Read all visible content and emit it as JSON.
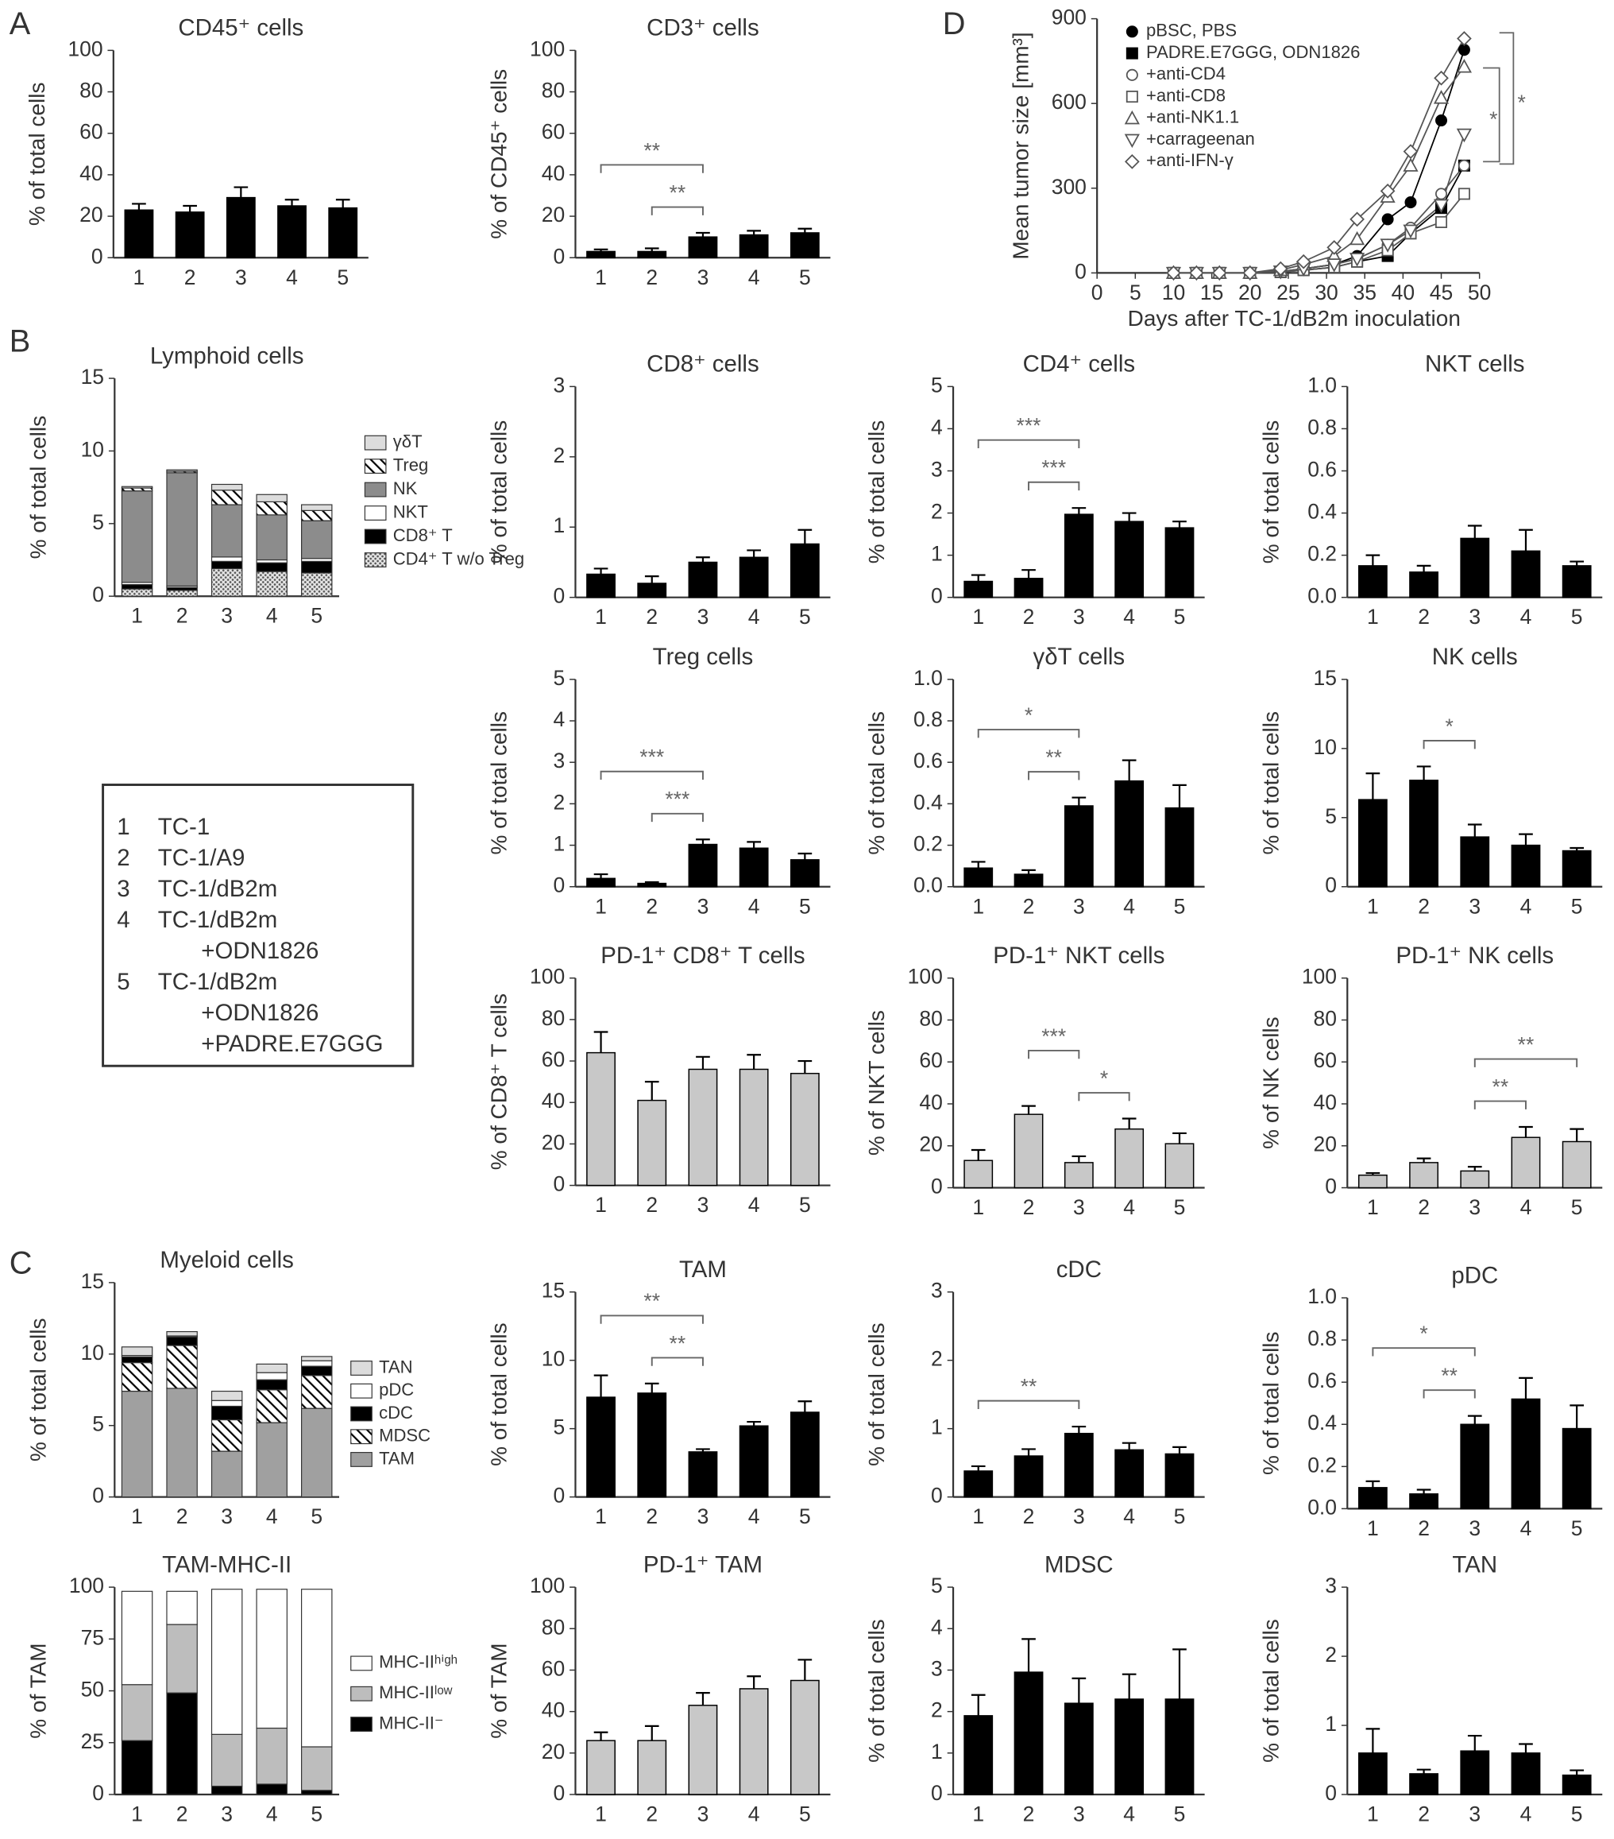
{
  "chart_data": [
    {
      "type": "bar",
      "title": "CD45⁺ cells",
      "y_label": "% of total cells",
      "categories": [
        "1",
        "2",
        "3",
        "4",
        "5"
      ],
      "values": [
        23,
        22,
        29,
        25,
        24
      ],
      "errors": [
        3,
        3,
        5,
        3,
        4
      ],
      "color": "#000000",
      "ylim": [
        0,
        100
      ],
      "yticks": [
        0,
        20,
        40,
        60,
        80,
        100
      ]
    },
    {
      "type": "bar",
      "title": "CD3⁺ cells",
      "y_label": "% of CD45⁺ cells",
      "categories": [
        "1",
        "2",
        "3",
        "4",
        "5"
      ],
      "values": [
        3,
        3,
        10,
        11,
        12
      ],
      "errors": [
        1,
        1.5,
        2,
        2,
        2
      ],
      "color": "#000000",
      "ylim": [
        0,
        100
      ],
      "yticks": [
        0,
        20,
        40,
        60,
        80,
        100
      ],
      "brackets": [
        {
          "span": [
            "2",
            "3"
          ],
          "label": "**"
        },
        {
          "span": [
            "1",
            "3"
          ],
          "label": "**"
        }
      ]
    },
    {
      "type": "line",
      "x_label": "Days after TC-1/dB2m inoculation",
      "y_label": "Mean tumor size [mm³]",
      "x": [
        10,
        13,
        16,
        20,
        24,
        27,
        31,
        34,
        38,
        41,
        45,
        48
      ],
      "xlim": [
        0,
        50
      ],
      "xticks": [
        0,
        5,
        10,
        15,
        20,
        25,
        30,
        35,
        40,
        45,
        50
      ],
      "ylim": [
        0,
        900
      ],
      "yticks": [
        0,
        300,
        600,
        900
      ],
      "significance": [
        "*",
        "*"
      ],
      "series": [
        {
          "name": "pBSC, PBS",
          "marker": "circle",
          "filled": true,
          "color": "#000000",
          "values": [
            0,
            0,
            0,
            0,
            5,
            15,
            30,
            60,
            190,
            250,
            540,
            790
          ]
        },
        {
          "name": "PADRE.E7GGG, ODN1826",
          "marker": "square",
          "filled": true,
          "color": "#000000",
          "values": [
            0,
            0,
            0,
            0,
            3,
            10,
            20,
            40,
            60,
            140,
            230,
            380
          ]
        },
        {
          "name": "+anti-CD4",
          "marker": "circle",
          "filled": false,
          "color": "#555555",
          "values": [
            0,
            0,
            0,
            0,
            5,
            15,
            30,
            50,
            100,
            160,
            280,
            380
          ]
        },
        {
          "name": "+anti-CD8",
          "marker": "square",
          "filled": false,
          "color": "#555555",
          "values": [
            0,
            0,
            0,
            0,
            3,
            10,
            20,
            40,
            80,
            140,
            180,
            280
          ]
        },
        {
          "name": "+anti-NK1.1",
          "marker": "triangle",
          "filled": false,
          "color": "#555555",
          "values": [
            0,
            0,
            0,
            0,
            10,
            30,
            60,
            120,
            270,
            380,
            620,
            730
          ]
        },
        {
          "name": "+carrageenan",
          "marker": "triangle-down",
          "filled": false,
          "color": "#555555",
          "values": [
            0,
            0,
            0,
            0,
            5,
            15,
            30,
            50,
            100,
            150,
            240,
            490
          ]
        },
        {
          "name": "+anti-IFN-γ",
          "marker": "diamond",
          "filled": false,
          "color": "#555555",
          "values": [
            0,
            0,
            0,
            0,
            15,
            40,
            90,
            190,
            290,
            430,
            690,
            830
          ]
        }
      ]
    },
    {
      "type": "stacked_bar",
      "title": "Lymphoid cells",
      "y_label": "% of total cells",
      "categories": [
        "1",
        "2",
        "3",
        "4",
        "5"
      ],
      "ylim": [
        0,
        15
      ],
      "yticks": [
        0,
        5,
        10,
        15
      ],
      "series": [
        {
          "name": "CD4⁺ T w/o Treg",
          "color": "#dddddd",
          "pattern": "dots",
          "values": [
            0.5,
            0.4,
            1.9,
            1.7,
            1.6
          ]
        },
        {
          "name": "CD8⁺ T",
          "color": "#000000",
          "values": [
            0.3,
            0.2,
            0.5,
            0.6,
            0.8
          ]
        },
        {
          "name": "NKT",
          "color": "#ffffff",
          "values": [
            0.15,
            0.1,
            0.3,
            0.2,
            0.2
          ]
        },
        {
          "name": "NK",
          "color": "#8c8c8c",
          "values": [
            6.3,
            7.8,
            3.6,
            3.1,
            2.6
          ]
        },
        {
          "name": "Treg",
          "color": "#ffffff",
          "pattern": "hatch",
          "values": [
            0.2,
            0.1,
            1.0,
            0.9,
            0.7
          ]
        },
        {
          "name": "γδT",
          "color": "#dcdcdc",
          "values": [
            0.1,
            0.1,
            0.4,
            0.5,
            0.4
          ]
        }
      ]
    },
    {
      "type": "bar",
      "title": "CD8⁺ cells",
      "y_label": "% of total cells",
      "categories": [
        "1",
        "2",
        "3",
        "4",
        "5"
      ],
      "values": [
        0.33,
        0.2,
        0.5,
        0.57,
        0.76
      ],
      "errors": [
        0.08,
        0.1,
        0.07,
        0.1,
        0.2
      ],
      "color": "#000000",
      "ylim": [
        0,
        3
      ],
      "yticks": [
        0,
        1,
        2,
        3
      ]
    },
    {
      "type": "bar",
      "title": "CD4⁺ cells",
      "y_label": "% of total cells",
      "categories": [
        "1",
        "2",
        "3",
        "4",
        "5"
      ],
      "values": [
        0.38,
        0.45,
        1.97,
        1.8,
        1.65
      ],
      "errors": [
        0.15,
        0.2,
        0.15,
        0.2,
        0.15
      ],
      "color": "#000000",
      "ylim": [
        0,
        5
      ],
      "yticks": [
        0,
        1,
        2,
        3,
        4,
        5
      ],
      "brackets": [
        {
          "span": [
            "2",
            "3"
          ],
          "label": "***"
        },
        {
          "span": [
            "1",
            "3"
          ],
          "label": "***"
        }
      ]
    },
    {
      "type": "bar",
      "title": "NKT cells",
      "y_label": "% of total cells",
      "categories": [
        "1",
        "2",
        "3",
        "4",
        "5"
      ],
      "values": [
        0.15,
        0.12,
        0.28,
        0.22,
        0.15
      ],
      "errors": [
        0.05,
        0.03,
        0.06,
        0.1,
        0.02
      ],
      "color": "#000000",
      "ylim": [
        0,
        1
      ],
      "yticks": [
        {
          "value": 0,
          "label": "0.0"
        },
        0.2,
        0.4,
        0.6,
        0.8,
        {
          "value": 1,
          "label": "1.0"
        }
      ]
    },
    {
      "type": "bar",
      "title": "Treg cells",
      "y_label": "% of total cells",
      "categories": [
        "1",
        "2",
        "3",
        "4",
        "5"
      ],
      "values": [
        0.2,
        0.08,
        1.02,
        0.93,
        0.65
      ],
      "errors": [
        0.1,
        0.03,
        0.12,
        0.15,
        0.15
      ],
      "color": "#000000",
      "ylim": [
        0,
        5
      ],
      "yticks": [
        0,
        1,
        2,
        3,
        4,
        5
      ],
      "brackets": [
        {
          "span": [
            "2",
            "3"
          ],
          "label": "***"
        },
        {
          "span": [
            "1",
            "3"
          ],
          "label": "***"
        }
      ]
    },
    {
      "type": "bar",
      "title": "γδT cells",
      "y_label": "% of total cells",
      "categories": [
        "1",
        "2",
        "3",
        "4",
        "5"
      ],
      "values": [
        0.09,
        0.06,
        0.39,
        0.51,
        0.38
      ],
      "errors": [
        0.03,
        0.02,
        0.04,
        0.1,
        0.11
      ],
      "color": "#000000",
      "ylim": [
        0,
        1
      ],
      "yticks": [
        {
          "value": 0,
          "label": "0.0"
        },
        0.2,
        0.4,
        0.6,
        0.8,
        {
          "value": 1,
          "label": "1.0"
        }
      ],
      "brackets": [
        {
          "span": [
            "2",
            "3"
          ],
          "label": "**"
        },
        {
          "span": [
            "1",
            "3"
          ],
          "label": "*"
        }
      ]
    },
    {
      "type": "bar",
      "title": "NK cells",
      "y_label": "% of total cells",
      "categories": [
        "1",
        "2",
        "3",
        "4",
        "5"
      ],
      "values": [
        6.3,
        7.7,
        3.6,
        3.0,
        2.6
      ],
      "errors": [
        1.9,
        1.0,
        0.9,
        0.8,
        0.2
      ],
      "color": "#000000",
      "ylim": [
        0,
        15
      ],
      "yticks": [
        0,
        5,
        10,
        15
      ],
      "brackets": [
        {
          "span": [
            "2",
            "3"
          ],
          "label": "*"
        }
      ]
    },
    {
      "type": "bar",
      "title": "PD-1⁺ CD8⁺  T cells",
      "y_label": "% of CD8⁺ T cells",
      "categories": [
        "1",
        "2",
        "3",
        "4",
        "5"
      ],
      "values": [
        64,
        41,
        56,
        56,
        54
      ],
      "errors": [
        10,
        9,
        6,
        7,
        6
      ],
      "color": "#c8c8c8",
      "ylim": [
        0,
        100
      ],
      "yticks": [
        0,
        20,
        40,
        60,
        80,
        100
      ]
    },
    {
      "type": "bar",
      "title": "PD-1⁺ NKT cells",
      "y_label": "% of NKT cells",
      "categories": [
        "1",
        "2",
        "3",
        "4",
        "5"
      ],
      "values": [
        13,
        35,
        12,
        28,
        21
      ],
      "errors": [
        5,
        4,
        3,
        5,
        5
      ],
      "color": "#c8c8c8",
      "ylim": [
        0,
        100
      ],
      "yticks": [
        0,
        20,
        40,
        60,
        80,
        100
      ],
      "brackets": [
        {
          "span": [
            "3",
            "4"
          ],
          "label": "*"
        },
        {
          "span": [
            "2",
            "3"
          ],
          "label": "***"
        }
      ]
    },
    {
      "type": "bar",
      "title": "PD-1⁺ NK cells",
      "y_label": "% of NK cells",
      "categories": [
        "1",
        "2",
        "3",
        "4",
        "5"
      ],
      "values": [
        6,
        12,
        8,
        24,
        22
      ],
      "errors": [
        1,
        2,
        2,
        5,
        6
      ],
      "color": "#c8c8c8",
      "ylim": [
        0,
        100
      ],
      "yticks": [
        0,
        20,
        40,
        60,
        80,
        100
      ],
      "brackets": [
        {
          "span": [
            "3",
            "4"
          ],
          "label": "**"
        },
        {
          "span": [
            "3",
            "5"
          ],
          "label": "**"
        }
      ]
    },
    {
      "type": "stacked_bar",
      "title": "Myeloid cells",
      "y_label": "% of total cells",
      "categories": [
        "1",
        "2",
        "3",
        "4",
        "5"
      ],
      "ylim": [
        0,
        15
      ],
      "yticks": [
        0,
        5,
        10,
        15
      ],
      "series": [
        {
          "name": "TAM",
          "color": "#a0a0a0",
          "values": [
            7.4,
            7.6,
            3.2,
            5.2,
            6.2
          ]
        },
        {
          "name": "MDSC",
          "color": "#ffffff",
          "pattern": "hatch",
          "values": [
            2.0,
            3.0,
            2.2,
            2.3,
            2.3
          ]
        },
        {
          "name": "cDC",
          "color": "#000000",
          "values": [
            0.4,
            0.6,
            0.95,
            0.7,
            0.65
          ]
        },
        {
          "name": "pDC",
          "color": "#ffffff",
          "values": [
            0.1,
            0.07,
            0.4,
            0.5,
            0.38
          ]
        },
        {
          "name": "TAN",
          "color": "#dcdcdc",
          "values": [
            0.6,
            0.3,
            0.65,
            0.6,
            0.3
          ]
        }
      ]
    },
    {
      "type": "bar",
      "title": "TAM",
      "y_label": "% of total cells",
      "categories": [
        "1",
        "2",
        "3",
        "4",
        "5"
      ],
      "values": [
        7.3,
        7.6,
        3.3,
        5.2,
        6.2
      ],
      "errors": [
        1.6,
        0.7,
        0.2,
        0.3,
        0.8
      ],
      "color": "#000000",
      "ylim": [
        0,
        15
      ],
      "yticks": [
        0,
        5,
        10,
        15
      ],
      "brackets": [
        {
          "span": [
            "2",
            "3"
          ],
          "label": "**"
        },
        {
          "span": [
            "1",
            "3"
          ],
          "label": "**"
        }
      ]
    },
    {
      "type": "bar",
      "title": "cDC",
      "y_label": "% of total cells",
      "categories": [
        "1",
        "2",
        "3",
        "4",
        "5"
      ],
      "values": [
        0.38,
        0.6,
        0.93,
        0.69,
        0.63
      ],
      "errors": [
        0.07,
        0.1,
        0.1,
        0.1,
        0.1
      ],
      "color": "#000000",
      "ylim": [
        0,
        3
      ],
      "yticks": [
        0,
        1,
        2,
        3
      ],
      "brackets": [
        {
          "span": [
            "1",
            "3"
          ],
          "label": "**"
        }
      ]
    },
    {
      "type": "bar",
      "title": "pDC",
      "y_label": "% of total cells",
      "categories": [
        "1",
        "2",
        "3",
        "4",
        "5"
      ],
      "values": [
        0.1,
        0.07,
        0.4,
        0.52,
        0.38
      ],
      "errors": [
        0.03,
        0.02,
        0.04,
        0.1,
        0.11
      ],
      "color": "#000000",
      "ylim": [
        0,
        1
      ],
      "yticks": [
        {
          "value": 0,
          "label": "0.0"
        },
        0.2,
        0.4,
        0.6,
        0.8,
        {
          "value": 1,
          "label": "1.0"
        }
      ],
      "brackets": [
        {
          "span": [
            "2",
            "3"
          ],
          "label": "**"
        },
        {
          "span": [
            "1",
            "3"
          ],
          "label": "*"
        }
      ]
    },
    {
      "type": "stacked_bar",
      "title": "TAM-MHC-II",
      "y_label": "% of TAM",
      "categories": [
        "1",
        "2",
        "3",
        "4",
        "5"
      ],
      "ylim": [
        0,
        100
      ],
      "yticks": [
        0,
        25,
        50,
        75,
        100
      ],
      "series": [
        {
          "name": "MHC-II⁻",
          "color": "#000000",
          "values": [
            26,
            49,
            4,
            5,
            2
          ]
        },
        {
          "name": "MHC-IIˡᵒʷ",
          "color": "#bdbdbd",
          "values": [
            27,
            33,
            25,
            27,
            21
          ]
        },
        {
          "name": "MHC-IIʰⁱᵍʰ",
          "color": "#ffffff",
          "values": [
            45,
            16,
            70,
            67,
            76
          ]
        }
      ]
    },
    {
      "type": "bar",
      "title": "PD-1⁺ TAM",
      "y_label": "% of TAM",
      "categories": [
        "1",
        "2",
        "3",
        "4",
        "5"
      ],
      "values": [
        26,
        26,
        43,
        51,
        55
      ],
      "errors": [
        4,
        7,
        6,
        6,
        10
      ],
      "color": "#c8c8c8",
      "ylim": [
        0,
        100
      ],
      "yticks": [
        0,
        20,
        40,
        60,
        80,
        100
      ]
    },
    {
      "type": "bar",
      "title": "MDSC",
      "y_label": "% of total cells",
      "categories": [
        "1",
        "2",
        "3",
        "4",
        "5"
      ],
      "values": [
        1.9,
        2.95,
        2.2,
        2.3,
        2.3
      ],
      "errors": [
        0.5,
        0.8,
        0.6,
        0.6,
        1.2
      ],
      "color": "#000000",
      "ylim": [
        0,
        5
      ],
      "yticks": [
        0,
        1,
        2,
        3,
        4,
        5
      ]
    },
    {
      "type": "bar",
      "title": "TAN",
      "y_label": "% of total cells",
      "categories": [
        "1",
        "2",
        "3",
        "4",
        "5"
      ],
      "values": [
        0.6,
        0.3,
        0.63,
        0.6,
        0.28
      ],
      "errors": [
        0.35,
        0.06,
        0.22,
        0.13,
        0.07
      ],
      "color": "#000000",
      "ylim": [
        0,
        3
      ],
      "yticks": [
        0,
        1,
        2,
        3
      ]
    }
  ],
  "panel_labels": [
    "A",
    "B",
    "C",
    "D"
  ],
  "group_key": [
    {
      "number": "1",
      "lines": [
        "TC-1"
      ]
    },
    {
      "number": "2",
      "lines": [
        "TC-1/A9"
      ]
    },
    {
      "number": "3",
      "lines": [
        "TC-1/dB2m"
      ]
    },
    {
      "number": "4",
      "lines": [
        "TC-1/dB2m",
        "+ODN1826"
      ]
    },
    {
      "number": "5",
      "lines": [
        "TC-1/dB2m",
        "+ODN1826",
        "+PADRE.E7GGG"
      ]
    }
  ]
}
